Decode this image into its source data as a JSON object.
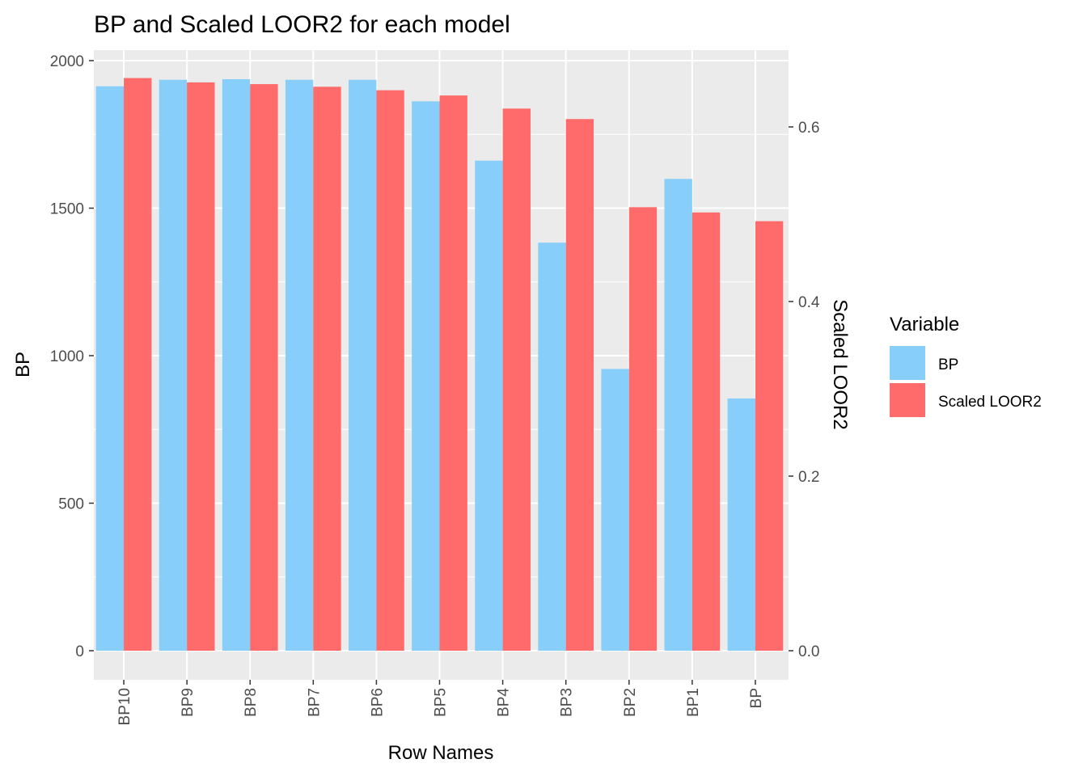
{
  "chart_data": {
    "type": "bar",
    "title": "BP and Scaled LOOR2 for each model",
    "xlabel": "Row Names",
    "ylabel": "BP",
    "y2label": "Scaled LOOR2",
    "categories": [
      "BP10",
      "BP9",
      "BP8",
      "BP7",
      "BP6",
      "BP5",
      "BP4",
      "BP3",
      "BP2",
      "BP1",
      "BP"
    ],
    "ylim": [
      0,
      2000
    ],
    "y2lim": [
      0,
      0.6
    ],
    "yticks": [
      "0",
      "500",
      "1000",
      "1500",
      "2000"
    ],
    "y2ticks": [
      "0.0",
      "0.2",
      "0.4",
      "0.6"
    ],
    "series": [
      {
        "name": "BP",
        "axis": "left",
        "color": "#87CEFA",
        "values": [
          1913,
          1935,
          1937,
          1935,
          1935,
          1862,
          1661,
          1383,
          955,
          1599,
          855
        ]
      },
      {
        "name": "Scaled LOOR2",
        "axis": "right",
        "color": "#FF6A6A",
        "values": [
          0.656,
          0.651,
          0.649,
          0.646,
          0.642,
          0.636,
          0.621,
          0.609,
          0.508,
          0.502,
          0.492
        ]
      }
    ],
    "legend": {
      "title": "Variable",
      "position": "right"
    },
    "grid": true,
    "panel_background": "#EBEBEB"
  }
}
